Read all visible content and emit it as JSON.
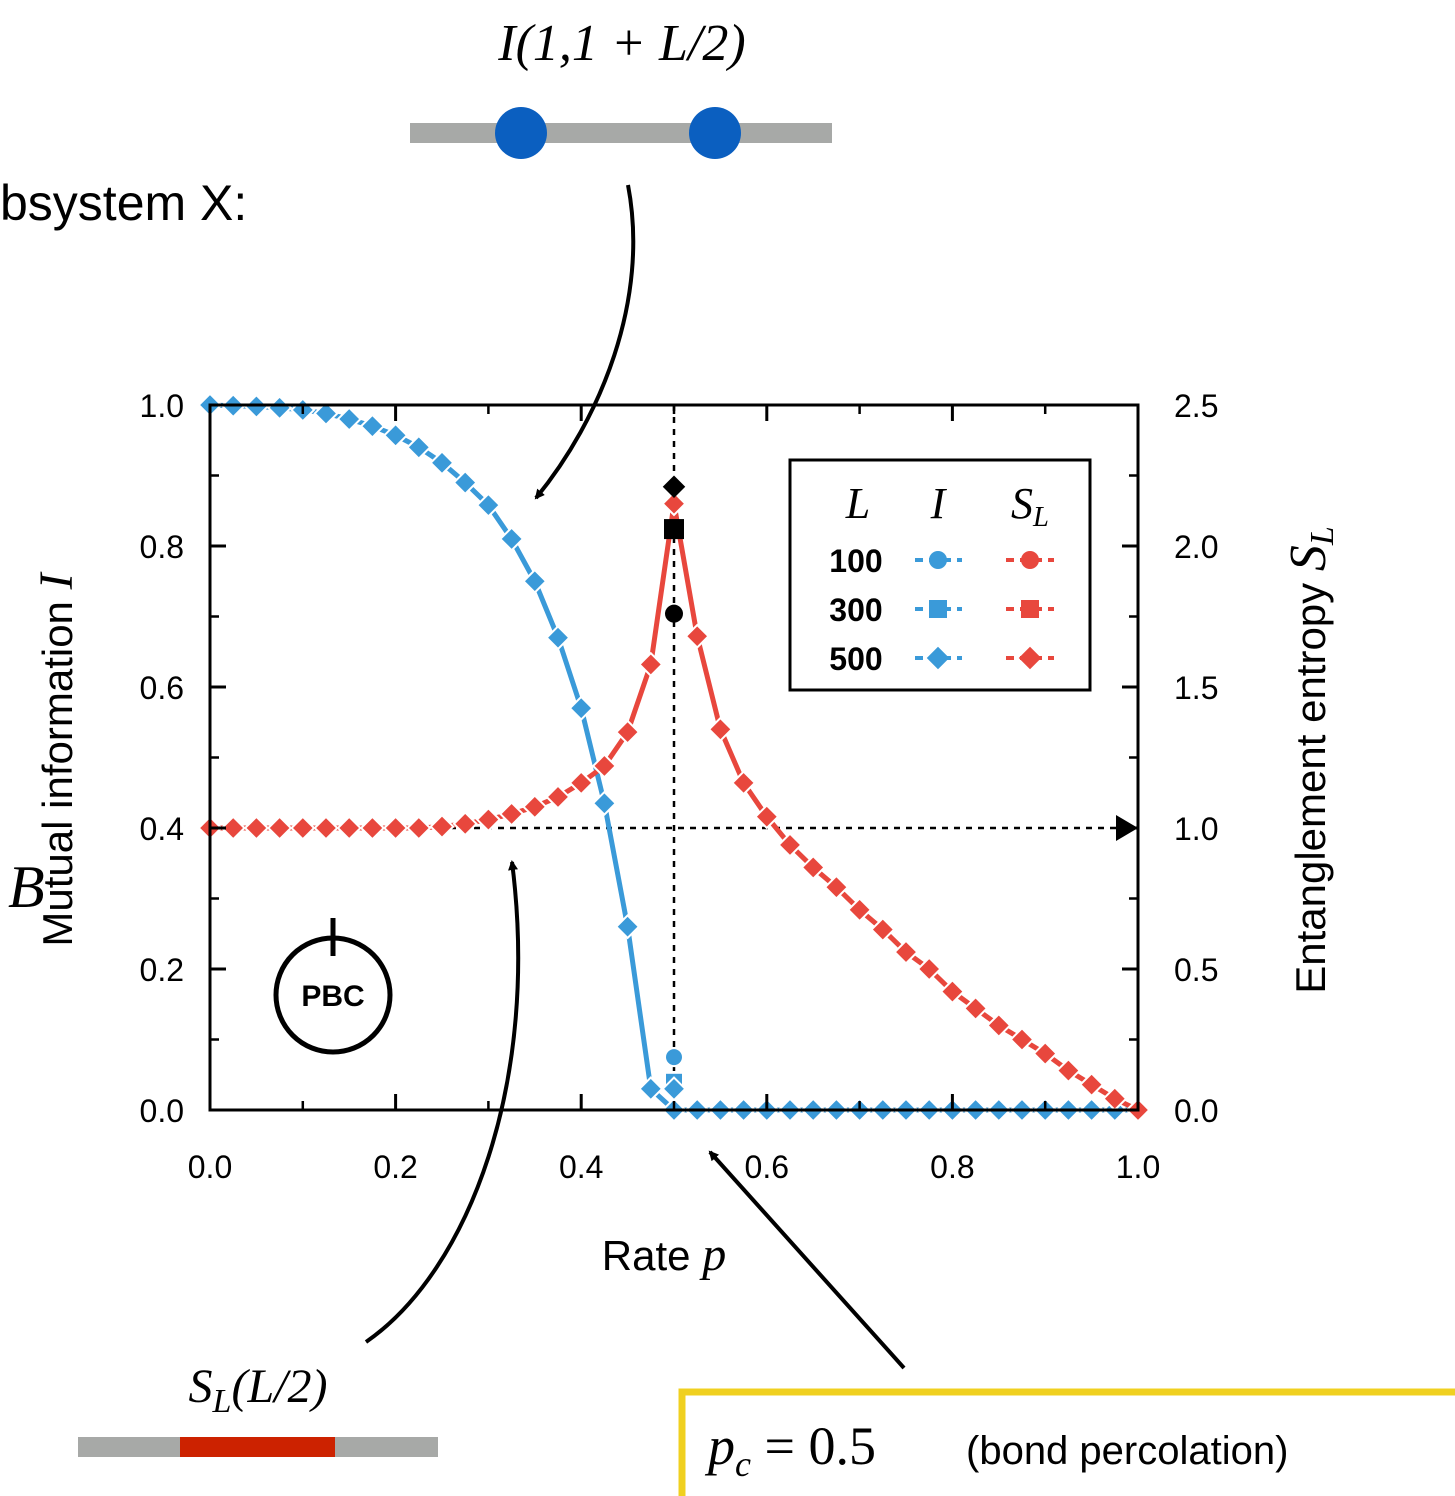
{
  "annotations": {
    "subsystem_label": "bsystem X:",
    "mi_label": "I(1,1 + L/2)",
    "ee_label": "S_L(L/2)",
    "panel_label": "B",
    "pbc_label": "PBC",
    "pc_label": "p_c = 0.5",
    "pc_note": "(bond percolation)"
  },
  "colors": {
    "blue": "#3a9ad9",
    "red": "#e8473d",
    "dot_blue": "#0b5fc0",
    "bar_gray": "#a7a9a7",
    "bar_red": "#cc2200",
    "box_yellow": "#f0d020"
  },
  "chart_data": {
    "type": "line",
    "xlabel": "Rate p",
    "ylabel_left": "Mutual information I",
    "ylabel_right": "Entanglement entropy S_L",
    "xlim": [
      0.0,
      1.0
    ],
    "ylim_left": [
      0.0,
      1.0
    ],
    "ylim_right": [
      0.0,
      2.5
    ],
    "x_ticks": [
      "0.0",
      "0.2",
      "0.4",
      "0.6",
      "0.8",
      "1.0"
    ],
    "y_left_ticks": [
      "0.0",
      "0.2",
      "0.4",
      "0.6",
      "0.8",
      "1.0"
    ],
    "y_right_ticks": [
      "0.0",
      "0.5",
      "1.0",
      "1.5",
      "2.0",
      "2.5"
    ],
    "critical_p": 0.5,
    "reference_S": 1.0,
    "legend": {
      "headers": [
        "L",
        "I",
        "S_L"
      ],
      "rows": [
        "100",
        "300",
        "500"
      ],
      "markers": [
        "circle",
        "square",
        "diamond"
      ],
      "placement": "top-right"
    },
    "x": [
      0.0,
      0.025,
      0.05,
      0.075,
      0.1,
      0.125,
      0.15,
      0.175,
      0.2,
      0.225,
      0.25,
      0.275,
      0.3,
      0.325,
      0.35,
      0.375,
      0.4,
      0.425,
      0.45,
      0.475,
      0.5,
      0.525,
      0.55,
      0.575,
      0.6,
      0.625,
      0.65,
      0.675,
      0.7,
      0.725,
      0.75,
      0.775,
      0.8,
      0.825,
      0.85,
      0.875,
      0.9,
      0.925,
      0.95,
      0.975,
      1.0
    ],
    "series": [
      {
        "name": "I",
        "axis": "left",
        "values": [
          1.0,
          0.999,
          0.998,
          0.996,
          0.993,
          0.988,
          0.98,
          0.97,
          0.957,
          0.94,
          0.918,
          0.89,
          0.858,
          0.81,
          0.75,
          0.67,
          0.57,
          0.435,
          0.26,
          0.03,
          0.0,
          0.0,
          0.0,
          0.0,
          0.0,
          0.0,
          0.0,
          0.0,
          0.0,
          0.0,
          0.0,
          0.0,
          0.0,
          0.0,
          0.0,
          0.0,
          0.0,
          0.0,
          0.0,
          0.0,
          0.0
        ]
      },
      {
        "name": "S_L",
        "axis": "right",
        "values": [
          1.0,
          1.0,
          1.0,
          1.0,
          1.0,
          1.0,
          1.0,
          1.0,
          1.0,
          1.0,
          1.005,
          1.015,
          1.03,
          1.05,
          1.075,
          1.11,
          1.16,
          1.22,
          1.34,
          1.58,
          2.15,
          1.68,
          1.35,
          1.16,
          1.04,
          0.94,
          0.86,
          0.79,
          0.71,
          0.64,
          0.56,
          0.5,
          0.42,
          0.36,
          0.3,
          0.25,
          0.2,
          0.14,
          0.09,
          0.04,
          0.0
        ]
      }
    ],
    "peak_markers": {
      "I_at_pc": [
        {
          "L": "100",
          "marker": "circle",
          "value": 0.075
        },
        {
          "L": "300",
          "marker": "square",
          "value": 0.04
        },
        {
          "L": "500",
          "marker": "diamond",
          "value": 0.03
        }
      ],
      "S_at_pc": [
        {
          "L": "100",
          "marker": "circle",
          "value": 1.76
        },
        {
          "L": "300",
          "marker": "square",
          "value": 2.06
        },
        {
          "L": "500",
          "marker": "diamond",
          "value": 2.21
        }
      ]
    }
  }
}
